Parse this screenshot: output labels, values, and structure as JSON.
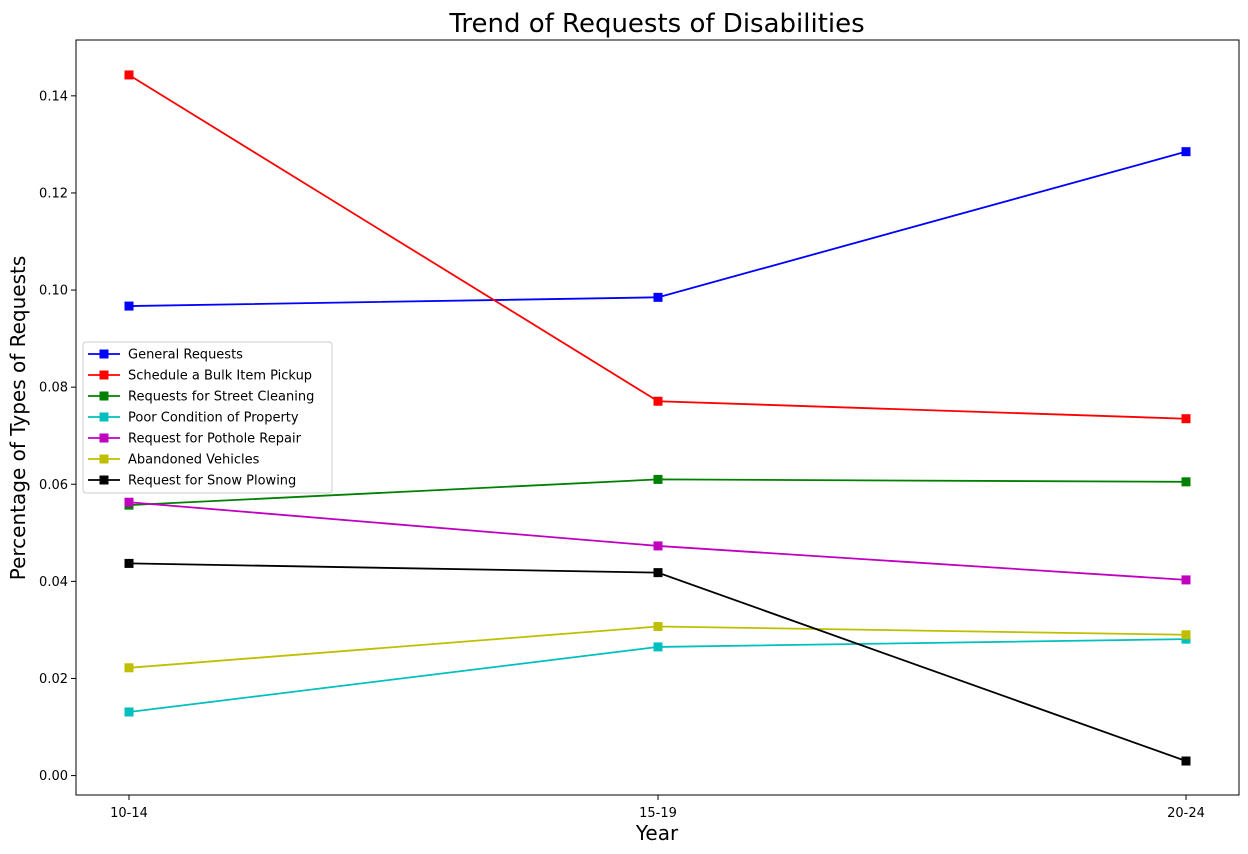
{
  "chart_data": {
    "type": "line",
    "title": "Trend of Requests of Disabilities",
    "xlabel": "Year",
    "ylabel": "Percentage of Types of Requests",
    "categories": [
      "10-14",
      "15-19",
      "20-24"
    ],
    "ylim": [
      -0.004,
      0.1515
    ],
    "yticks": [
      0.0,
      0.02,
      0.04,
      0.06,
      0.08,
      0.1,
      0.12,
      0.14
    ],
    "ytick_labels": [
      "0.00",
      "0.02",
      "0.04",
      "0.06",
      "0.08",
      "0.10",
      "0.12",
      "0.14"
    ],
    "grid": false,
    "legend_position": "center-left",
    "marker": "square",
    "series": [
      {
        "name": "General Requests",
        "color": "#0000ff",
        "values": [
          0.0967,
          0.0985,
          0.1285
        ]
      },
      {
        "name": "Schedule a Bulk Item Pickup",
        "color": "#ff0000",
        "values": [
          0.1443,
          0.0771,
          0.0735
        ]
      },
      {
        "name": "Requests for Street Cleaning",
        "color": "#008000",
        "values": [
          0.0557,
          0.061,
          0.0605
        ]
      },
      {
        "name": "Poor Condition of Property",
        "color": "#00bfbf",
        "values": [
          0.0131,
          0.0265,
          0.0281
        ]
      },
      {
        "name": "Request for Pothole Repair",
        "color": "#bf00bf",
        "values": [
          0.0563,
          0.0473,
          0.0403
        ]
      },
      {
        "name": "Abandoned Vehicles",
        "color": "#bfbf00",
        "values": [
          0.0222,
          0.0307,
          0.029
        ]
      },
      {
        "name": "Request for Snow Plowing",
        "color": "#000000",
        "values": [
          0.0437,
          0.0418,
          0.003
        ]
      }
    ]
  }
}
